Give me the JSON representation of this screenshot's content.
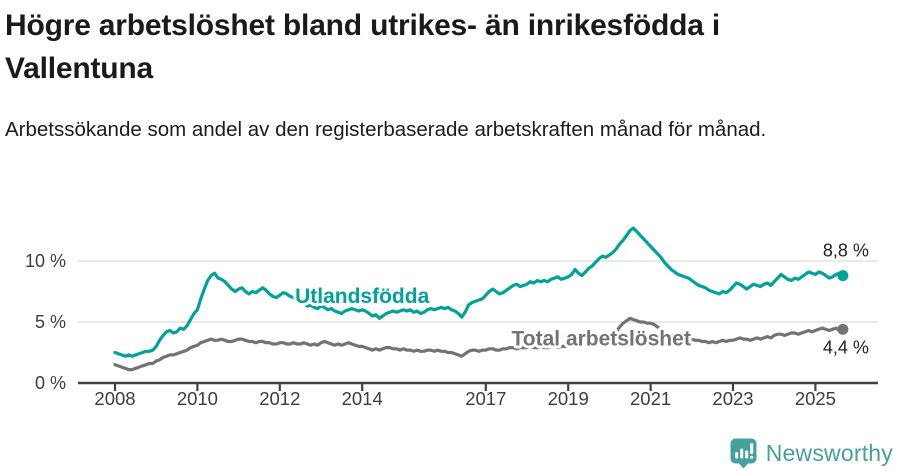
{
  "header": {
    "title": "Högre arbetslöshet bland utrikes- än inrikesfödda i Vallentuna",
    "subtitle": "Arbetssökande som andel av den registerbaserade arbetskraften månad för månad."
  },
  "footer": {
    "brand": "Newsworthy",
    "logo_icon": "newsworthy-speech-bubble-bar-chart-icon"
  },
  "colors": {
    "foreign_born": "#00a29a",
    "total": "#737373",
    "title_text": "#1a1a1a",
    "axis_text": "#3d3d3d",
    "grid": "#dcdcdc",
    "axis_line": "#404040",
    "end_label": "#222222",
    "logo": "#46a09e"
  },
  "chart_data": {
    "type": "line",
    "title": "Högre arbetslöshet bland utrikes- än inrikesfödda i Vallentuna",
    "subtitle": "Arbetssökande som andel av den registerbaserade arbetskraften månad för månad.",
    "x_unit": "monthly, Jan 2008 – Sep 2025",
    "x_start": 2008.0,
    "x_step": 0.0833333,
    "grid": "horizontal",
    "legend_position": "inline-labels",
    "ylim": [
      0,
      13.5
    ],
    "xlim": [
      2007.1,
      2026.6
    ],
    "yticks": [
      {
        "value": 0,
        "label": "0 %"
      },
      {
        "value": 5,
        "label": "5 %"
      },
      {
        "value": 10,
        "label": "10 %"
      }
    ],
    "xticks": [
      {
        "value": 2008,
        "label": "2008"
      },
      {
        "value": 2010,
        "label": "2010"
      },
      {
        "value": 2012,
        "label": "2012"
      },
      {
        "value": 2014,
        "label": "2014"
      },
      {
        "value": 2017,
        "label": "2017"
      },
      {
        "value": 2019,
        "label": "2019"
      },
      {
        "value": 2021,
        "label": "2021"
      },
      {
        "value": 2023,
        "label": "2023"
      },
      {
        "value": 2025,
        "label": "2025"
      }
    ],
    "series": [
      {
        "name": "Utlandsfödda",
        "color_key": "foreign_born",
        "end_label": "8,8 %",
        "end_label_pos": "above",
        "label_at": [
          2014.0,
          7.1
        ],
        "values": [
          2.5,
          2.4,
          2.3,
          2.2,
          2.3,
          2.2,
          2.3,
          2.4,
          2.5,
          2.6,
          2.6,
          2.7,
          3.0,
          3.5,
          3.9,
          4.2,
          4.3,
          4.1,
          4.2,
          4.5,
          4.4,
          4.7,
          5.2,
          5.7,
          6.0,
          6.9,
          7.7,
          8.4,
          8.8,
          9.0,
          8.6,
          8.5,
          8.3,
          8.0,
          7.7,
          7.5,
          7.7,
          7.8,
          7.5,
          7.3,
          7.5,
          7.4,
          7.6,
          7.8,
          7.6,
          7.3,
          7.1,
          7.0,
          7.2,
          7.4,
          7.3,
          7.1,
          7.0,
          6.8,
          6.6,
          6.5,
          6.3,
          6.4,
          6.2,
          6.1,
          6.3,
          6.2,
          6.0,
          6.1,
          5.9,
          5.8,
          5.7,
          5.9,
          6.0,
          6.1,
          6.0,
          5.9,
          6.0,
          5.9,
          5.7,
          5.5,
          5.6,
          5.3,
          5.5,
          5.7,
          5.8,
          5.9,
          5.8,
          5.9,
          6.0,
          5.9,
          6.0,
          5.8,
          5.9,
          5.7,
          5.8,
          6.0,
          6.1,
          6.0,
          6.1,
          6.2,
          6.1,
          6.2,
          6.0,
          5.9,
          5.7,
          5.4,
          5.8,
          6.4,
          6.6,
          6.7,
          6.8,
          6.9,
          7.2,
          7.5,
          7.7,
          7.5,
          7.3,
          7.4,
          7.6,
          7.8,
          8.0,
          8.1,
          7.9,
          8.0,
          8.1,
          8.3,
          8.2,
          8.4,
          8.3,
          8.4,
          8.3,
          8.5,
          8.6,
          8.7,
          8.5,
          8.6,
          8.7,
          8.9,
          9.3,
          9.0,
          8.8,
          9.1,
          9.4,
          9.6,
          9.9,
          10.2,
          10.4,
          10.3,
          10.5,
          10.7,
          11.0,
          11.4,
          11.7,
          12.1,
          12.5,
          12.7,
          12.4,
          12.1,
          11.8,
          11.5,
          11.2,
          10.9,
          10.6,
          10.3,
          9.9,
          9.6,
          9.3,
          9.1,
          8.9,
          8.8,
          8.7,
          8.6,
          8.4,
          8.2,
          8.0,
          7.9,
          7.8,
          7.6,
          7.5,
          7.4,
          7.3,
          7.5,
          7.4,
          7.6,
          7.9,
          8.2,
          8.1,
          7.9,
          7.7,
          7.9,
          8.1,
          8.0,
          7.9,
          8.1,
          8.2,
          8.0,
          8.3,
          8.6,
          8.9,
          8.7,
          8.5,
          8.4,
          8.6,
          8.5,
          8.7,
          8.9,
          9.1,
          9.0,
          8.9,
          9.1,
          9.0,
          8.8,
          8.6,
          8.7,
          8.9,
          9.0,
          8.8
        ]
      },
      {
        "name": "Total arbetslöshet",
        "color_key": "total",
        "end_label": "4,4 %",
        "end_label_pos": "below",
        "label_at": [
          2019.8,
          3.6
        ],
        "values": [
          1.5,
          1.4,
          1.3,
          1.2,
          1.1,
          1.1,
          1.2,
          1.3,
          1.4,
          1.5,
          1.6,
          1.6,
          1.8,
          1.9,
          2.1,
          2.2,
          2.3,
          2.3,
          2.4,
          2.5,
          2.6,
          2.7,
          2.9,
          3.0,
          3.1,
          3.3,
          3.4,
          3.5,
          3.6,
          3.5,
          3.5,
          3.6,
          3.5,
          3.4,
          3.4,
          3.5,
          3.6,
          3.6,
          3.5,
          3.4,
          3.4,
          3.3,
          3.4,
          3.4,
          3.3,
          3.3,
          3.2,
          3.2,
          3.3,
          3.3,
          3.2,
          3.2,
          3.3,
          3.2,
          3.2,
          3.3,
          3.2,
          3.1,
          3.2,
          3.1,
          3.3,
          3.4,
          3.3,
          3.2,
          3.1,
          3.2,
          3.1,
          3.2,
          3.3,
          3.2,
          3.1,
          3.0,
          3.0,
          2.9,
          2.8,
          2.7,
          2.8,
          2.7,
          2.8,
          2.9,
          2.9,
          2.8,
          2.8,
          2.7,
          2.8,
          2.7,
          2.7,
          2.6,
          2.7,
          2.6,
          2.6,
          2.7,
          2.7,
          2.6,
          2.7,
          2.6,
          2.6,
          2.5,
          2.5,
          2.4,
          2.3,
          2.2,
          2.4,
          2.6,
          2.7,
          2.7,
          2.6,
          2.7,
          2.7,
          2.8,
          2.8,
          2.7,
          2.7,
          2.8,
          2.8,
          2.9,
          2.9,
          2.8,
          2.9,
          2.9,
          2.9,
          3.0,
          2.9,
          2.9,
          3.0,
          2.9,
          2.9,
          3.0,
          3.0,
          2.9,
          3.0,
          3.0,
          3.0,
          3.1,
          3.1,
          3.2,
          3.1,
          3.2,
          3.3,
          3.4,
          3.5,
          3.6,
          3.7,
          3.8,
          3.9,
          4.0,
          4.2,
          4.6,
          4.9,
          5.1,
          5.3,
          5.2,
          5.1,
          5.0,
          5.0,
          4.9,
          4.9,
          4.8,
          4.6,
          4.4,
          4.2,
          4.1,
          4.0,
          3.9,
          3.8,
          3.7,
          3.6,
          3.6,
          3.6,
          3.5,
          3.5,
          3.4,
          3.4,
          3.3,
          3.4,
          3.3,
          3.4,
          3.5,
          3.4,
          3.5,
          3.5,
          3.6,
          3.7,
          3.6,
          3.6,
          3.5,
          3.6,
          3.7,
          3.6,
          3.7,
          3.8,
          3.7,
          3.9,
          4.0,
          4.0,
          3.9,
          4.0,
          4.1,
          4.1,
          4.0,
          4.1,
          4.2,
          4.3,
          4.2,
          4.3,
          4.4,
          4.5,
          4.4,
          4.3,
          4.4,
          4.5,
          4.3,
          4.4
        ]
      }
    ]
  }
}
